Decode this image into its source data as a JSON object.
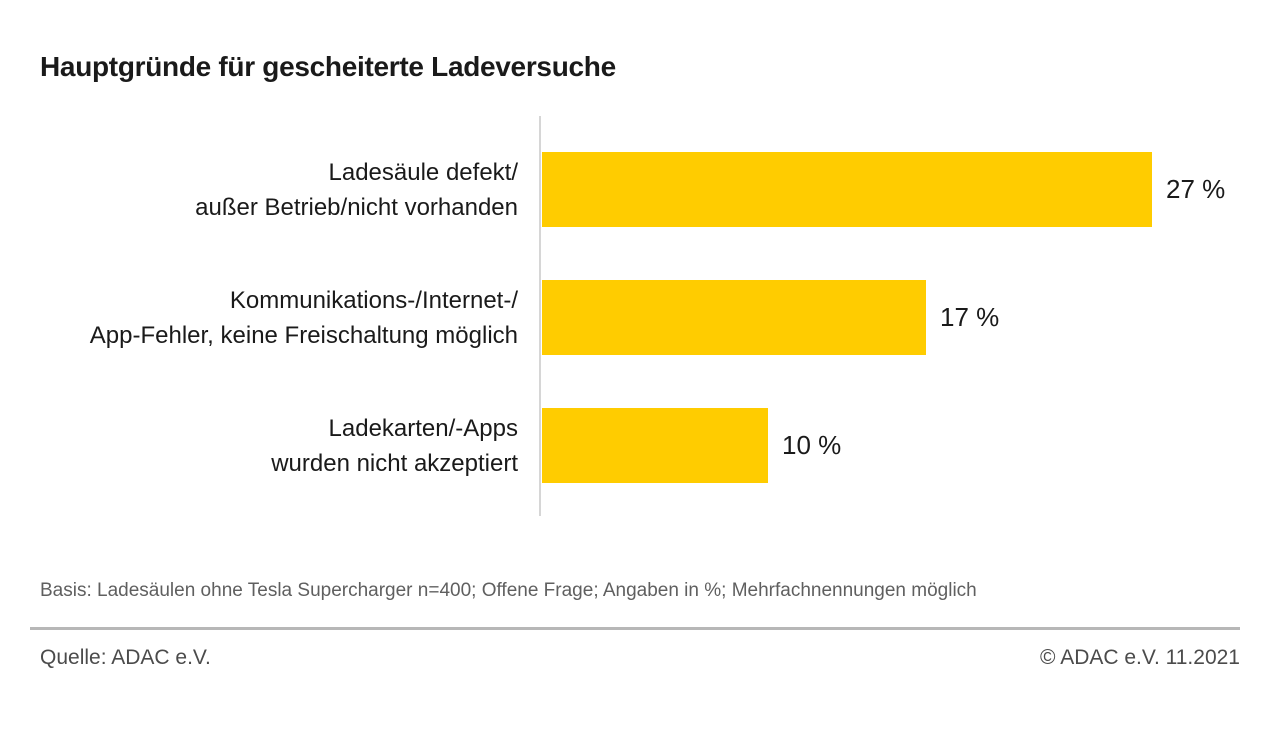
{
  "title": "Hauptgründe für gescheiterte Ladeversuche",
  "chart_data": {
    "type": "bar",
    "orientation": "horizontal",
    "title": "Hauptgründe für gescheiterte Ladeversuche",
    "unit": "%",
    "xlim": [
      0,
      27
    ],
    "grid": false,
    "legend": "none",
    "bar_color": "#FFCC00",
    "axis_color": "#D6D6D6",
    "categories": [
      [
        "Ladesäule defekt/",
        "außer Betrieb/nicht vorhanden"
      ],
      [
        "Kommunikations-/Internet-/",
        "App-Fehler, keine Freischaltung möglich"
      ],
      [
        "Ladekarten/-Apps",
        "wurden nicht akzeptiert"
      ]
    ],
    "values": [
      27,
      17,
      10
    ],
    "value_labels": [
      "27 %",
      "17 %",
      "10 %"
    ]
  },
  "footer": {
    "basis": "Basis: Ladesäulen ohne Tesla Supercharger n=400; Offene Frage; Angaben in %; Mehrfachnennungen möglich",
    "source": "Quelle: ADAC e.V.",
    "copyright": "© ADAC e.V. 11.2021"
  }
}
